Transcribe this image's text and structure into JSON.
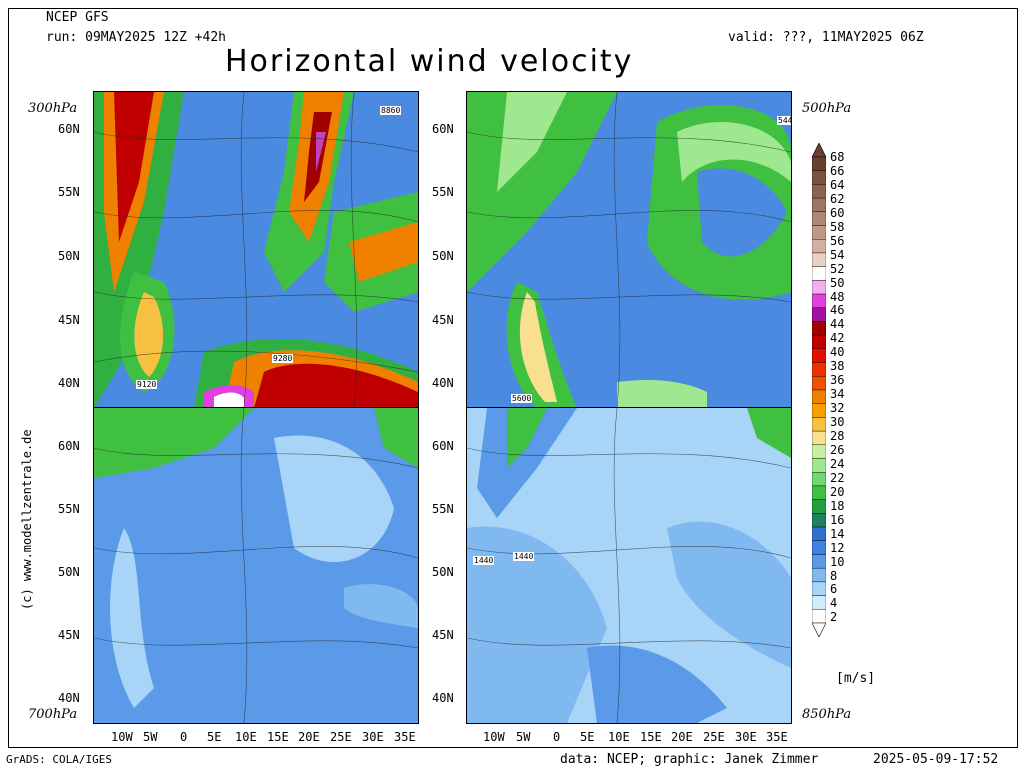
{
  "header": {
    "model": "NCEP GFS",
    "run": "run: 09MAY2025 12Z +42h",
    "valid": "valid: ???, 11MAY2025 06Z",
    "title": "Horizontal wind velocity"
  },
  "panels": [
    {
      "level": "300hPa",
      "contours": [
        "8860",
        "9120",
        "9280"
      ]
    },
    {
      "level": "500hPa",
      "contours": [
        "544",
        "5600"
      ]
    },
    {
      "level": "700hPa",
      "contours": []
    },
    {
      "level": "850hPa",
      "contours": [
        "1440",
        "1440"
      ]
    }
  ],
  "axes": {
    "lat_ticks": [
      "60N",
      "55N",
      "50N",
      "45N",
      "40N"
    ],
    "lon_ticks": [
      "10W",
      "5W",
      "0",
      "5E",
      "10E",
      "15E",
      "20E",
      "25E",
      "30E",
      "35E"
    ]
  },
  "colorbar": {
    "unit": "[m/s]",
    "labels": [
      "68",
      "66",
      "64",
      "62",
      "60",
      "58",
      "56",
      "54",
      "52",
      "50",
      "48",
      "46",
      "44",
      "42",
      "40",
      "38",
      "36",
      "34",
      "32",
      "30",
      "28",
      "26",
      "24",
      "22",
      "20",
      "18",
      "16",
      "14",
      "12",
      "10",
      "8",
      "6",
      "4",
      "2"
    ],
    "colors": [
      "#6b3e2e",
      "#7d5040",
      "#8e6250",
      "#a07462",
      "#b08674",
      "#c09886",
      "#d4b0a0",
      "#e8d0c4",
      "#ffffff",
      "#f0b0f0",
      "#e040e0",
      "#a010a0",
      "#a00000",
      "#c00000",
      "#e01000",
      "#f03000",
      "#f05000",
      "#f08000",
      "#f8a000",
      "#f8c040",
      "#f8e090",
      "#c8f0a0",
      "#a0e890",
      "#70d870",
      "#40c040",
      "#20a040",
      "#208060",
      "#3070d0",
      "#4080e0",
      "#5a9ae8",
      "#80b8f0",
      "#a8d4f8",
      "#d0ecfc",
      "#ffffff"
    ]
  },
  "side_text": "(c) www.modellzentrale.de",
  "footer": {
    "left": "GrADS: COLA/IGES",
    "middle": "data: NCEP; graphic: Janek Zimmer",
    "right": "2025-05-09-17:52"
  }
}
